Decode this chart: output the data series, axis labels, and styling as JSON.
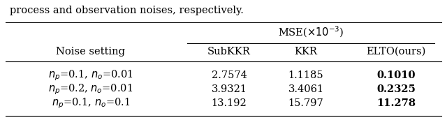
{
  "top_text": "process and observation noises, respectively.",
  "mse_header": "MSE($\\times10^{-3}$)",
  "col_headers": [
    "Noise setting",
    "SubKKR",
    "KKR",
    "ELTO(ours)"
  ],
  "rows": [
    {
      "label": "$n_p$=0.1, $n_o$=0.01",
      "subkkr": "2.7574",
      "kkr": "1.1185",
      "elto": "0.1010"
    },
    {
      "label": "$n_p$=0.2, $n_o$=0.01",
      "subkkr": "3.9321",
      "kkr": "3.4061",
      "elto": "0.2325"
    },
    {
      "label": "$n_p$=0.1, $n_o$=0.1",
      "subkkr": "13.192",
      "kkr": "15.797",
      "elto": "11.278"
    }
  ],
  "figsize": [
    6.4,
    1.92
  ],
  "dpi": 100,
  "fontsize": 10.5
}
